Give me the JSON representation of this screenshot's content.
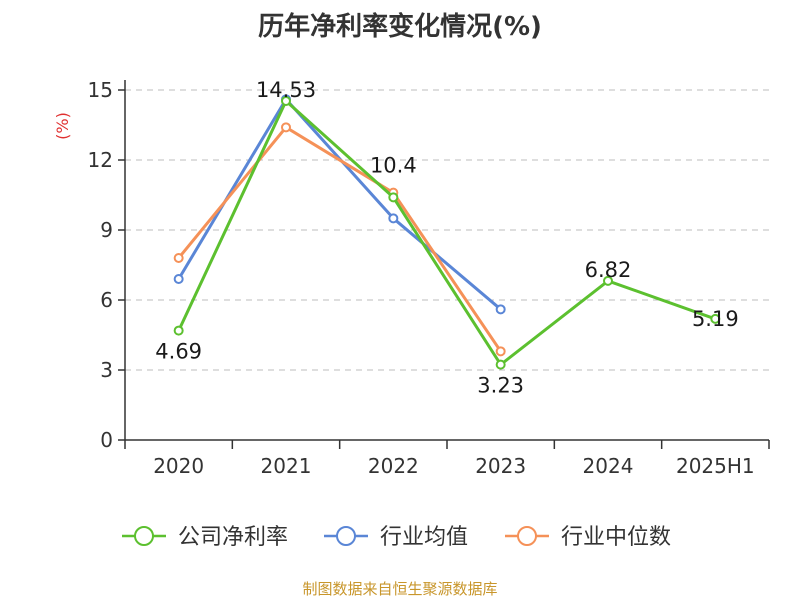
{
  "title": "历年净利率变化情况(%)",
  "source": "制图数据来自恒生聚源数据库",
  "chart_data": {
    "type": "line",
    "title": "历年净利率变化情况(%)",
    "ylabel": "(%)",
    "xlabel": "",
    "ylim": [
      0,
      15
    ],
    "yticks": [
      "0",
      "3",
      "6",
      "9",
      "12",
      "15"
    ],
    "categories": [
      "2020",
      "2021",
      "2022",
      "2023",
      "2024",
      "2025H1"
    ],
    "grid": true,
    "legend_position": "bottom",
    "series": [
      {
        "name": "公司净利率",
        "color": "#5cc02f",
        "values": [
          4.69,
          14.53,
          10.4,
          3.23,
          6.82,
          5.19
        ],
        "labels": [
          "4.69",
          "14.53",
          "10.4",
          "3.23",
          "6.82",
          "5.19"
        ]
      },
      {
        "name": "行业均值",
        "color": "#5a86d6",
        "values": [
          6.9,
          14.6,
          9.5,
          5.6,
          null,
          null
        ]
      },
      {
        "name": "行业中位数",
        "color": "#f59158",
        "values": [
          7.8,
          13.4,
          10.6,
          3.8,
          null,
          null
        ]
      }
    ]
  }
}
